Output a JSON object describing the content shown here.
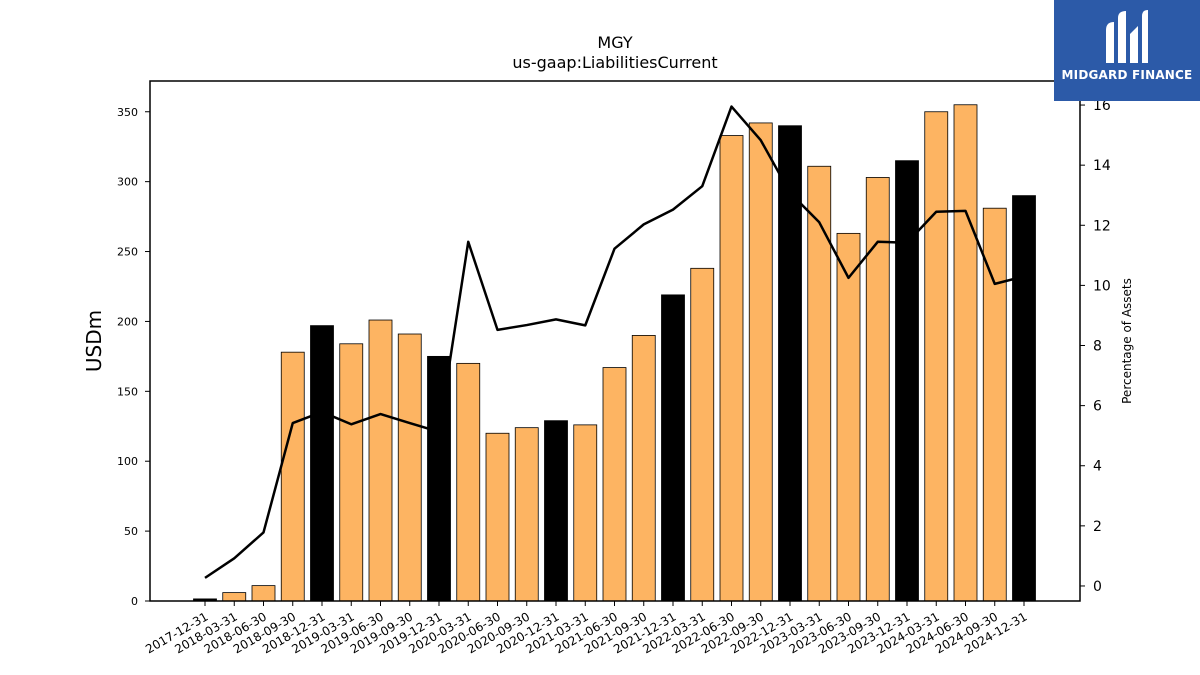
{
  "chart_data": {
    "type": "bar",
    "title": "MGY",
    "subtitle": "us-gaap:LiabilitiesCurrent",
    "ylabel": "USDm",
    "y2label": "Percentage of Assets",
    "ylim": [
      0,
      372
    ],
    "y2lim": [
      -0.5,
      16.8
    ],
    "yticks": [
      0,
      50,
      100,
      150,
      200,
      250,
      300,
      350
    ],
    "y2ticks": [
      0,
      2,
      4,
      6,
      8,
      10,
      12,
      14,
      16
    ],
    "categories": [
      "2017-12-31",
      "2018-03-31",
      "2018-06-30",
      "2018-09-30",
      "2018-12-31",
      "2019-03-31",
      "2019-06-30",
      "2019-09-30",
      "2019-12-31",
      "2020-03-31",
      "2020-06-30",
      "2020-09-30",
      "2020-12-31",
      "2021-03-31",
      "2021-06-30",
      "2021-09-30",
      "2021-12-31",
      "2022-03-31",
      "2022-06-30",
      "2022-09-30",
      "2022-12-31",
      "2023-03-31",
      "2023-06-30",
      "2023-09-30",
      "2023-12-31",
      "2024-03-31",
      "2024-06-30",
      "2024-09-30",
      "2024-12-31"
    ],
    "values": [
      1.5,
      6,
      11,
      178,
      197,
      184,
      201,
      191,
      175,
      170,
      120,
      124,
      129,
      126,
      167,
      190,
      219,
      238,
      333,
      342,
      340,
      311,
      263,
      303,
      315,
      350,
      355,
      281,
      290
    ],
    "highlight": [
      true,
      false,
      false,
      false,
      true,
      false,
      false,
      false,
      true,
      false,
      false,
      false,
      true,
      false,
      false,
      false,
      true,
      false,
      false,
      false,
      true,
      false,
      false,
      false,
      true,
      false,
      false,
      false,
      true
    ],
    "line_values": [
      0.27,
      0.92,
      1.78,
      5.42,
      5.79,
      5.38,
      5.72,
      5.42,
      5.13,
      11.45,
      8.52,
      8.68,
      8.87,
      8.67,
      11.22,
      12.03,
      12.52,
      13.3,
      15.95,
      14.83,
      13.08,
      12.1,
      10.25,
      11.45,
      11.42,
      12.45,
      12.48,
      10.05,
      10.3
    ],
    "colors": {
      "bar": "#fdb462",
      "bar_highlight": "#000000",
      "line": "#000000"
    },
    "grid": false
  },
  "logo": {
    "text": "MIDGARD FINANCE",
    "background": "#2c5aa8"
  }
}
